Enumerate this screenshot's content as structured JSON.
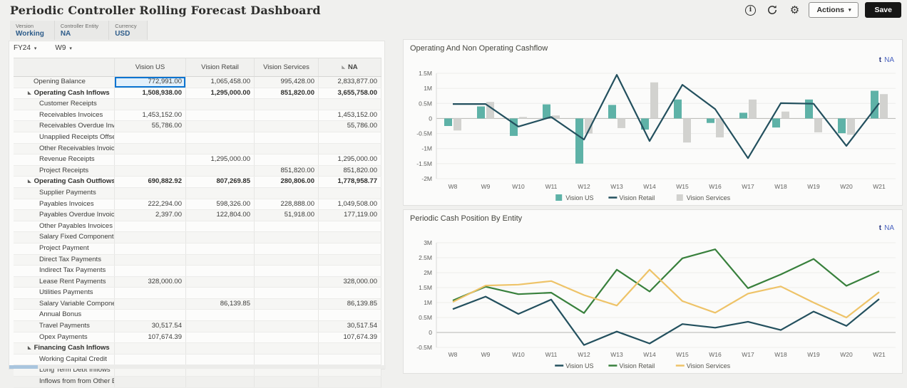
{
  "header": {
    "title": "Periodic Controller Rolling Forecast Dashboard",
    "actions_label": "Actions",
    "save_label": "Save"
  },
  "icons": {
    "info": "i",
    "gear": "⚙",
    "caret_down": "▾",
    "expand_triangle": "◣",
    "column_flag": "◣",
    "member_selector": "t"
  },
  "pov": {
    "items": [
      {
        "label": "Version",
        "value": "Working"
      },
      {
        "label": "Controller Entity",
        "value": "NA"
      },
      {
        "label": "Currency",
        "value": "USD"
      }
    ]
  },
  "grid": {
    "period_selector": "FY24",
    "week_selector": "W9",
    "columns": [
      {
        "label": "Vision US",
        "flag": false
      },
      {
        "label": "Vision Retail",
        "flag": false
      },
      {
        "label": "Vision Services",
        "flag": false
      },
      {
        "label": "NA",
        "flag": true
      }
    ],
    "rows": [
      {
        "label": "Opening Balance",
        "type": "plain",
        "selected": 0,
        "values": [
          "772,991.00",
          "1,065,458.00",
          "995,428.00",
          "2,833,877.00"
        ]
      },
      {
        "label": "Operating Cash Inflows",
        "type": "parent",
        "values": [
          "1,508,938.00",
          "1,295,000.00",
          "851,820.00",
          "3,655,758.00"
        ]
      },
      {
        "label": "Customer Receipts",
        "type": "leaf",
        "values": [
          "",
          "",
          "",
          ""
        ]
      },
      {
        "label": "Receivables Invoices",
        "type": "leaf",
        "values": [
          "1,453,152.00",
          "",
          "",
          "1,453,152.00"
        ]
      },
      {
        "label": "Receivables Overdue Invoices",
        "type": "leaf",
        "values": [
          "55,786.00",
          "",
          "",
          "55,786.00"
        ]
      },
      {
        "label": "Unapplied Receipts Offset",
        "type": "leaf",
        "values": [
          "",
          "",
          "",
          ""
        ]
      },
      {
        "label": "Other Receivables Invoices",
        "type": "leaf",
        "values": [
          "",
          "",
          "",
          ""
        ]
      },
      {
        "label": "Revenue Receipts",
        "type": "leaf",
        "values": [
          "",
          "1,295,000.00",
          "",
          "1,295,000.00"
        ]
      },
      {
        "label": "Project Receipts",
        "type": "leaf",
        "values": [
          "",
          "",
          "851,820.00",
          "851,820.00"
        ]
      },
      {
        "label": "Operating Cash Outflows",
        "type": "parent",
        "values": [
          "690,882.92",
          "807,269.85",
          "280,806.00",
          "1,778,958.77"
        ]
      },
      {
        "label": "Supplier Payments",
        "type": "leaf",
        "values": [
          "",
          "",
          "",
          ""
        ]
      },
      {
        "label": "Payables Invoices",
        "type": "leaf",
        "values": [
          "222,294.00",
          "598,326.00",
          "228,888.00",
          "1,049,508.00"
        ]
      },
      {
        "label": "Payables Overdue Invoices",
        "type": "leaf",
        "values": [
          "2,397.00",
          "122,804.00",
          "51,918.00",
          "177,119.00"
        ]
      },
      {
        "label": "Other Payables Invoices",
        "type": "leaf",
        "values": [
          "",
          "",
          "",
          ""
        ]
      },
      {
        "label": "Salary Fixed  Component",
        "type": "leaf",
        "values": [
          "",
          "",
          "",
          ""
        ]
      },
      {
        "label": "Project Payment",
        "type": "leaf",
        "values": [
          "",
          "",
          "",
          ""
        ]
      },
      {
        "label": "Direct Tax Payments",
        "type": "leaf",
        "values": [
          "",
          "",
          "",
          ""
        ]
      },
      {
        "label": "Indirect Tax Payments",
        "type": "leaf",
        "values": [
          "",
          "",
          "",
          ""
        ]
      },
      {
        "label": "Lease Rent Payments",
        "type": "leaf",
        "values": [
          "328,000.00",
          "",
          "",
          "328,000.00"
        ]
      },
      {
        "label": "Utilities Payments",
        "type": "leaf",
        "values": [
          "",
          "",
          "",
          ""
        ]
      },
      {
        "label": "Salary Variable Component",
        "type": "leaf",
        "values": [
          "",
          "86,139.85",
          "",
          "86,139.85"
        ]
      },
      {
        "label": "Annual Bonus",
        "type": "leaf",
        "values": [
          "",
          "",
          "",
          ""
        ]
      },
      {
        "label": "Travel Payments",
        "type": "leaf",
        "values": [
          "30,517.54",
          "",
          "",
          "30,517.54"
        ]
      },
      {
        "label": "Opex Payments",
        "type": "leaf",
        "values": [
          "107,674.39",
          "",
          "",
          "107,674.39"
        ]
      },
      {
        "label": "Financing Cash Inflows",
        "type": "parent",
        "values": [
          "",
          "",
          "",
          ""
        ]
      },
      {
        "label": "Working Capital Credit",
        "type": "leaf",
        "values": [
          "",
          "",
          "",
          ""
        ]
      },
      {
        "label": "Long Term Debt Inflows",
        "type": "leaf",
        "values": [
          "",
          "",
          "",
          ""
        ]
      },
      {
        "label": "Inflows from from Other Entities",
        "type": "leaf",
        "values": [
          "",
          "",
          "",
          ""
        ]
      }
    ]
  },
  "chart_data": [
    {
      "type": "bar",
      "subtype": "combo-bar-line",
      "title": "Operating And Non Operating Cashflow",
      "filter_label": "NA",
      "unit": "millions USD",
      "categories": [
        "W8",
        "W9",
        "W10",
        "W11",
        "W12",
        "W13",
        "W14",
        "W15",
        "W16",
        "W17",
        "W18",
        "W19",
        "W20",
        "W21"
      ],
      "series": [
        {
          "name": "Vision US",
          "type": "bar",
          "color": "#5eb2a7",
          "values": [
            -0.25,
            0.4,
            -0.58,
            0.47,
            -1.5,
            0.45,
            -0.37,
            0.63,
            -0.15,
            0.19,
            -0.3,
            0.63,
            -0.49,
            0.92
          ]
        },
        {
          "name": "Vision Retail",
          "type": "line",
          "color": "#23505e",
          "values": [
            0.48,
            0.48,
            -0.27,
            0.05,
            -0.7,
            1.45,
            -0.75,
            1.12,
            0.31,
            -1.32,
            0.51,
            0.49,
            -0.91,
            0.51
          ]
        },
        {
          "name": "Vision Services",
          "type": "bar",
          "color": "#d2d2cf",
          "values": [
            -0.4,
            0.55,
            0.05,
            0.1,
            -0.5,
            -0.32,
            1.2,
            -0.8,
            -0.63,
            0.63,
            0.23,
            -0.46,
            -0.54,
            0.81
          ]
        }
      ],
      "ylim": [
        -2,
        1.5
      ],
      "yticks": [
        {
          "v": 1.5,
          "label": "1.5M"
        },
        {
          "v": 1,
          "label": "1M"
        },
        {
          "v": 0.5,
          "label": "0.5M"
        },
        {
          "v": 0,
          "label": "0"
        },
        {
          "v": -0.5,
          "label": "-0.5M"
        },
        {
          "v": -1,
          "label": "-1M"
        },
        {
          "v": -1.5,
          "label": "-1.5M"
        },
        {
          "v": -2,
          "label": "-2M"
        }
      ],
      "grid": true,
      "legend_position": "bottom"
    },
    {
      "type": "line",
      "title": "Periodic Cash Position By Entity",
      "filter_label": "NA",
      "unit": "millions USD",
      "categories": [
        "W8",
        "W9",
        "W10",
        "W11",
        "W12",
        "W13",
        "W14",
        "W15",
        "W16",
        "W17",
        "W18",
        "W19",
        "W20",
        "W21"
      ],
      "series": [
        {
          "name": "Vision US",
          "type": "line",
          "color": "#23505e",
          "values": [
            0.78,
            1.2,
            0.62,
            1.1,
            -0.42,
            0.03,
            -0.37,
            0.28,
            0.16,
            0.36,
            0.08,
            0.7,
            0.22,
            1.12
          ]
        },
        {
          "name": "Vision Retail",
          "type": "line",
          "color": "#38803c",
          "values": [
            1.07,
            1.53,
            1.28,
            1.33,
            0.65,
            2.1,
            1.37,
            2.48,
            2.78,
            1.48,
            1.94,
            2.46,
            1.56,
            2.05
          ]
        },
        {
          "name": "Vision Services",
          "type": "line",
          "color": "#eec368",
          "values": [
            1.02,
            1.57,
            1.6,
            1.72,
            1.25,
            0.9,
            2.1,
            1.05,
            0.66,
            1.3,
            1.54,
            1.0,
            0.5,
            1.35
          ]
        }
      ],
      "ylim": [
        -0.5,
        3
      ],
      "yticks": [
        {
          "v": 3,
          "label": "3M"
        },
        {
          "v": 2.5,
          "label": "2.5M"
        },
        {
          "v": 2,
          "label": "2M"
        },
        {
          "v": 1.5,
          "label": "1.5M"
        },
        {
          "v": 1,
          "label": "1M"
        },
        {
          "v": 0.5,
          "label": "0.5M"
        },
        {
          "v": 0,
          "label": "0"
        },
        {
          "v": -0.5,
          "label": "-0.5M"
        }
      ],
      "grid": true,
      "legend_position": "bottom"
    }
  ]
}
